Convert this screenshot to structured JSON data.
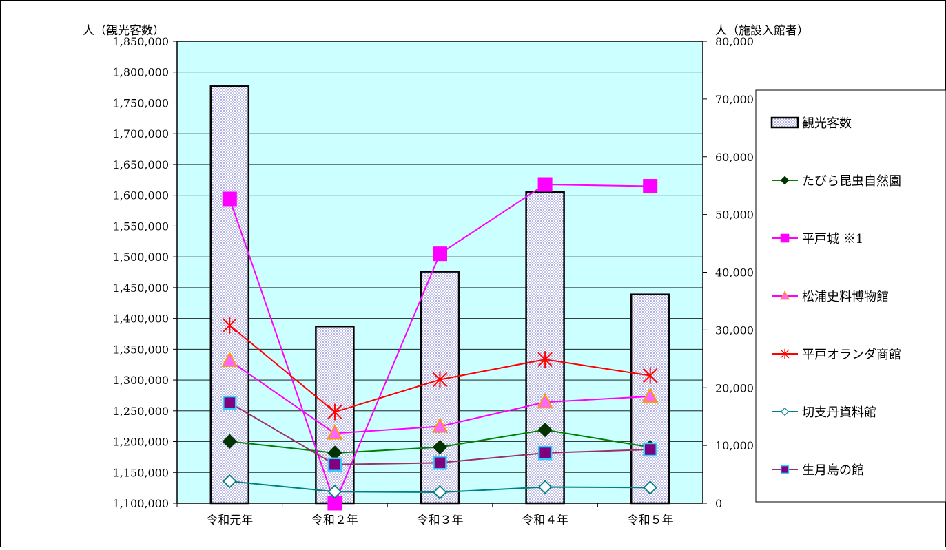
{
  "chart_data": {
    "type": "bar",
    "categories": [
      "令和元年",
      "令和２年",
      "令和３年",
      "令和４年",
      "令和５年"
    ],
    "y_left": {
      "label": "人（観光客数）",
      "ylim": [
        1100000,
        1850000
      ],
      "ticks": [
        "1,100,000",
        "1,150,000",
        "1,200,000",
        "1,250,000",
        "1,300,000",
        "1,350,000",
        "1,400,000",
        "1,450,000",
        "1,500,000",
        "1,550,000",
        "1,600,000",
        "1,650,000",
        "1,700,000",
        "1,750,000",
        "1,800,000",
        "1,850,000"
      ]
    },
    "y_right": {
      "label": "人（施設入館者）",
      "ylim": [
        0,
        80000
      ],
      "ticks": [
        "0",
        "10,000",
        "20,000",
        "30,000",
        "40,000",
        "50,000",
        "60,000",
        "70,000",
        "80,000"
      ]
    },
    "grid": true,
    "plot_background": "#CCFFFF",
    "legend_position": "right",
    "bar_series": {
      "name": "観光客数",
      "axis": "left",
      "values": [
        1777000,
        1387000,
        1476000,
        1605000,
        1439000
      ],
      "color": "#C8C8F0"
    },
    "line_series": [
      {
        "name": "たびら昆虫自然園",
        "axis": "right",
        "values": [
          10700,
          8700,
          9700,
          12700,
          9700
        ],
        "color": "#008000",
        "marker": "diamond-filled"
      },
      {
        "name": "平戸城 ※1",
        "axis": "right",
        "values": [
          52700,
          0,
          43200,
          55200,
          54900
        ],
        "color": "#FF00FF",
        "marker": "square-filled"
      },
      {
        "name": "松浦史料博物館",
        "axis": "right",
        "values": [
          24700,
          12100,
          13300,
          17500,
          18500
        ],
        "color": "#FF00FF",
        "marker": "triangle-orange"
      },
      {
        "name": "平戸オランダ商館",
        "axis": "right",
        "values": [
          30800,
          15800,
          21400,
          24900,
          22100
        ],
        "color": "#FF0000",
        "marker": "star"
      },
      {
        "name": "切支丹資料館",
        "axis": "right",
        "values": [
          3800,
          2000,
          1900,
          2800,
          2700
        ],
        "color": "#008080",
        "marker": "diamond-open"
      },
      {
        "name": "生月島の館",
        "axis": "right",
        "values": [
          17400,
          6700,
          7000,
          8700,
          9300
        ],
        "color": "#993366",
        "marker": "square-purple"
      }
    ]
  }
}
